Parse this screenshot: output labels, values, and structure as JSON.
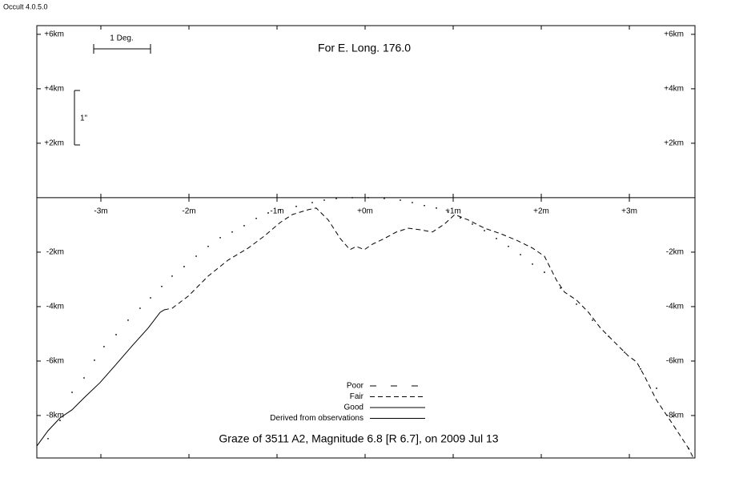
{
  "app_label": "Occult 4.0.5.0",
  "chart_data": {
    "type": "line",
    "title": "Graze of  3511 A2,  Magnitude 6.8 [R 6.7],  on 2009 Jul 13",
    "subtitle": "For E. Long. 176.0",
    "scale_labels": [
      "1 Deg.",
      "1\""
    ],
    "xlim": [
      -3.727,
      3.745
    ],
    "ylim": [
      -9.56,
      6.32
    ],
    "xticks": [
      {
        "value": -3,
        "label": "-3m"
      },
      {
        "value": -2,
        "label": "-2m"
      },
      {
        "value": -1,
        "label": "-1m"
      },
      {
        "value": 0,
        "label": "+0m"
      },
      {
        "value": 1,
        "label": "+1m"
      },
      {
        "value": 2,
        "label": "+2m"
      },
      {
        "value": 3,
        "label": "+3m"
      }
    ],
    "yticks": [
      {
        "value": 6,
        "label": "+6km"
      },
      {
        "value": 4,
        "label": "+4km"
      },
      {
        "value": 2,
        "label": "+2km"
      },
      {
        "value": -2,
        "label": "-2km"
      },
      {
        "value": -4,
        "label": "-4km"
      },
      {
        "value": -6,
        "label": "-6km"
      },
      {
        "value": -8,
        "label": "-8km"
      }
    ],
    "limb": {
      "color": "#000000",
      "x": [
        -3.6,
        -3.464,
        -3.327,
        -3.191,
        -3.073,
        -2.964,
        -2.827,
        -2.691,
        -2.555,
        -2.436,
        -2.309,
        -2.191,
        -2.055,
        -1.918,
        -1.782,
        -1.645,
        -1.509,
        -1.373,
        -1.236,
        -1.1,
        -0.964,
        -0.782,
        -0.6,
        -0.464,
        -0.327,
        -0.145,
        0.036,
        0.218,
        0.4,
        0.536,
        0.673,
        0.809,
        0.945,
        1.082,
        1.218,
        1.355,
        1.491,
        1.627,
        1.764,
        1.9,
        2.036,
        2.218,
        2.4,
        2.582,
        2.764,
        2.945,
        3.127,
        3.309,
        3.491,
        3.673
      ],
      "values": [
        -8.85,
        -8.18,
        -7.15,
        -6.62,
        -5.97,
        -5.47,
        -5.03,
        -4.5,
        -4.06,
        -3.68,
        -3.26,
        -2.88,
        -2.53,
        -2.15,
        -1.79,
        -1.47,
        -1.26,
        -1.03,
        -0.76,
        -0.56,
        -0.44,
        -0.32,
        -0.18,
        -0.09,
        -0.03,
        0,
        0,
        -0.03,
        -0.09,
        -0.18,
        -0.29,
        -0.38,
        -0.53,
        -0.74,
        -0.97,
        -1.21,
        -1.5,
        -1.79,
        -2.09,
        -2.44,
        -2.74,
        -3.32,
        -3.91,
        -4.5,
        -5.09,
        -5.68,
        -6.29,
        -7.0,
        -8.03,
        -9.21
      ]
    },
    "series": [
      {
        "name": "Poor",
        "color": "#000000",
        "line_style": "sparse-dash",
        "x": [],
        "values": []
      },
      {
        "name": "Fair",
        "color": "#000000",
        "line_style": "dash",
        "x": [
          -2.282,
          -2.191,
          -2.009,
          -1.782,
          -1.555,
          -1.327,
          -1.145,
          -0.964,
          -0.827,
          -0.645,
          -0.555,
          -0.418,
          -0.282,
          -0.173,
          -0.1,
          -0.009,
          0.082,
          0.218,
          0.355,
          0.491,
          0.627,
          0.764,
          0.9,
          1.018,
          1.173,
          1.355,
          1.536,
          1.718,
          1.9,
          2.036,
          2.173,
          2.264,
          2.4,
          2.536,
          2.673,
          2.855,
          2.991,
          3.082,
          3.173,
          3.309,
          3.445,
          3.582,
          3.673,
          3.727
        ],
        "values": [
          -4.12,
          -4.06,
          -3.62,
          -2.88,
          -2.29,
          -1.85,
          -1.41,
          -0.91,
          -0.62,
          -0.44,
          -0.38,
          -0.82,
          -1.5,
          -1.91,
          -1.79,
          -1.91,
          -1.71,
          -1.5,
          -1.26,
          -1.12,
          -1.18,
          -1.26,
          -0.97,
          -0.62,
          -0.82,
          -1.12,
          -1.32,
          -1.56,
          -1.85,
          -2.15,
          -3.03,
          -3.47,
          -3.76,
          -4.21,
          -4.79,
          -5.38,
          -5.82,
          -6.03,
          -6.56,
          -7.44,
          -8.09,
          -8.76,
          -9.21,
          -9.56
        ]
      },
      {
        "name": "Good",
        "color": "#000000",
        "line_style": "solid",
        "x": [
          -3.727,
          -3.6,
          -3.464,
          -3.327,
          -3.191,
          -3.009,
          -2.827,
          -2.645,
          -2.464,
          -2.327,
          -2.282
        ],
        "values": [
          -9.12,
          -8.56,
          -8.09,
          -7.79,
          -7.35,
          -6.79,
          -6.12,
          -5.44,
          -4.79,
          -4.21,
          -4.12
        ]
      },
      {
        "name": "Derived from observations",
        "color": "#000000",
        "line_style": "solid",
        "x": [],
        "values": []
      }
    ]
  }
}
